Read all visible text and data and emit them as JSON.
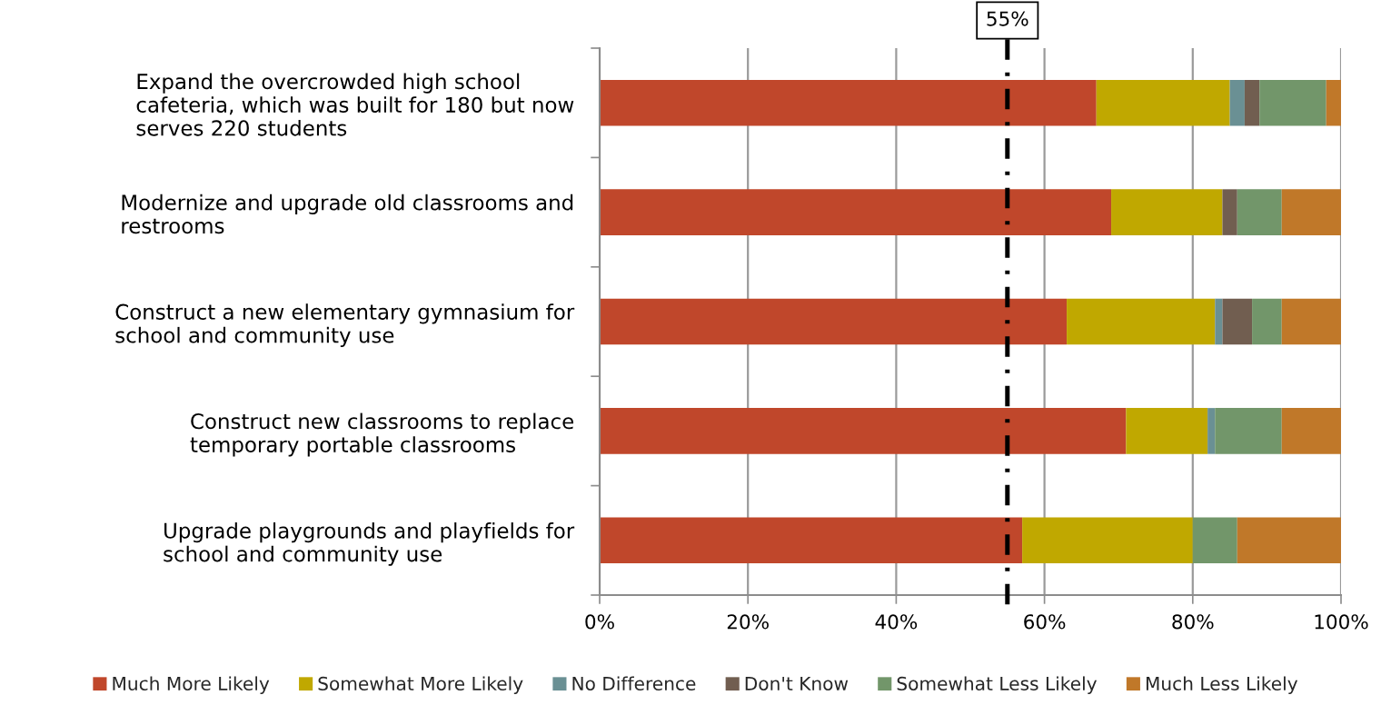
{
  "chart_data": {
    "type": "bar",
    "orientation": "horizontal",
    "stacked": true,
    "categories": [
      "Expand the overcrowded high school\ncafeteria, which was built for 180 but now\nserves 220 students",
      "Modernize and upgrade old classrooms and\nrestrooms",
      "Construct a new elementary gymnasium for\nschool and community use",
      "Construct new classrooms to replace\ntemporary portable classrooms",
      "Upgrade playgrounds and playfields for\nschool and community use"
    ],
    "series": [
      {
        "name": "Much More Likely",
        "color": "#c0472b",
        "values": [
          67,
          69,
          63,
          71,
          57
        ]
      },
      {
        "name": "Somewhat More Likely",
        "color": "#c0a800",
        "values": [
          18,
          15,
          20,
          11,
          23
        ]
      },
      {
        "name": "No Difference",
        "color": "#6a9094",
        "values": [
          2,
          0,
          1,
          1,
          0
        ]
      },
      {
        "name": "Don't Know",
        "color": "#715e50",
        "values": [
          2,
          2,
          4,
          0,
          0
        ]
      },
      {
        "name": "Somewhat Less Likely",
        "color": "#72966a",
        "values": [
          9,
          6,
          4,
          9,
          6
        ]
      },
      {
        "name": "Much Less Likely",
        "color": "#c07829",
        "values": [
          2,
          8,
          8,
          8,
          14
        ]
      }
    ],
    "xlim": [
      0,
      100
    ],
    "xticks": [
      {
        "value": 0,
        "label": "0%"
      },
      {
        "value": 20,
        "label": "20%"
      },
      {
        "value": 40,
        "label": "40%"
      },
      {
        "value": 60,
        "label": "60%"
      },
      {
        "value": 80,
        "label": "80%"
      },
      {
        "value": 100,
        "label": "100%"
      }
    ],
    "grid": "x",
    "legend": "bottom",
    "ref_lines": [
      {
        "axis": "x",
        "value": 55,
        "label": "55%",
        "color": "#000000",
        "line_style": "dashdot"
      }
    ]
  }
}
